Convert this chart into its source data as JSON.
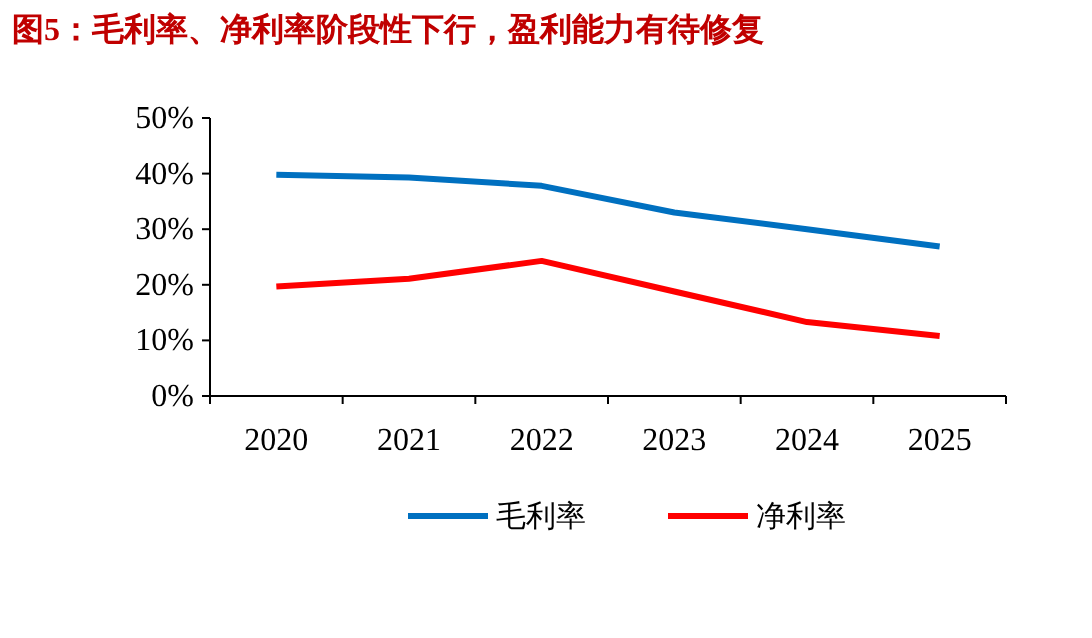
{
  "chart_data": {
    "type": "line",
    "title": "图5：毛利率、净利率阶段性下行，盈利能力有待修复",
    "categories": [
      "2020",
      "2021",
      "2022",
      "2023",
      "2024",
      "2025"
    ],
    "series": [
      {
        "name": "毛利率",
        "color": "#0070c0",
        "values": [
          39.8,
          39.3,
          37.8,
          33.0,
          30.0,
          26.9
        ]
      },
      {
        "name": "净利率",
        "color": "#ff0000",
        "values": [
          19.7,
          21.1,
          24.3,
          18.8,
          13.3,
          10.8
        ]
      }
    ],
    "ylim": [
      0,
      50
    ],
    "yticks": [
      {
        "value": 0,
        "label": "0%"
      },
      {
        "value": 10,
        "label": "10%"
      },
      {
        "value": 20,
        "label": "20%"
      },
      {
        "value": 30,
        "label": "30%"
      },
      {
        "value": 40,
        "label": "40%"
      },
      {
        "value": 50,
        "label": "50%"
      }
    ],
    "grid": false,
    "legend": "bottom",
    "marker": "none",
    "line_style": "solid"
  }
}
